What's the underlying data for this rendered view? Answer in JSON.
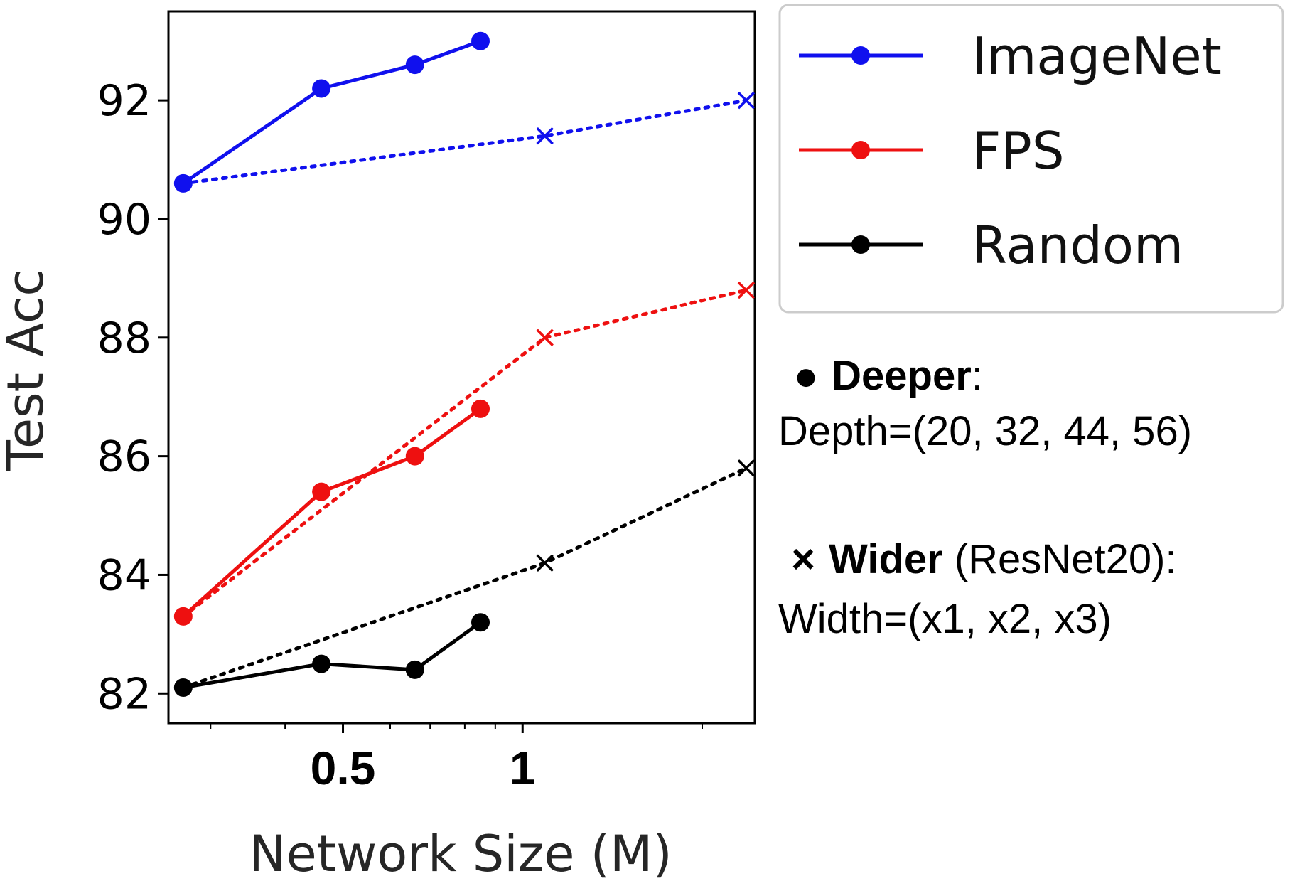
{
  "chart_data": {
    "type": "line",
    "xlabel": "Network Size (M)",
    "ylabel": "Test Acc",
    "x_scale": "log",
    "x_ticks": [
      {
        "value": 0.5,
        "label": "0.5"
      },
      {
        "value": 1,
        "label": "1"
      }
    ],
    "y_ticks": [
      82,
      84,
      86,
      88,
      90,
      92
    ],
    "ylim": [
      81.5,
      93.5
    ],
    "xlim": [
      0.255,
      2.45
    ],
    "grid": false,
    "legend_position": "outside-right-top",
    "legend": [
      {
        "label": "ImageNet",
        "color": "#1010ee"
      },
      {
        "label": "FPS",
        "color": "#ee1010"
      },
      {
        "label": "Random",
        "color": "#000000"
      }
    ],
    "series": [
      {
        "name": "ImageNet",
        "variant": "deeper",
        "line": "solid",
        "marker": "circle",
        "color": "#1010ee",
        "x": [
          0.27,
          0.46,
          0.66,
          0.85
        ],
        "y": [
          90.6,
          92.2,
          92.6,
          93.0
        ]
      },
      {
        "name": "ImageNet",
        "variant": "wider",
        "line": "dotted",
        "marker": "x",
        "color": "#1010ee",
        "x": [
          0.27,
          1.09,
          2.37
        ],
        "y": [
          90.6,
          91.4,
          92.0
        ]
      },
      {
        "name": "FPS",
        "variant": "deeper",
        "line": "solid",
        "marker": "circle",
        "color": "#ee1010",
        "x": [
          0.27,
          0.46,
          0.66,
          0.85
        ],
        "y": [
          83.3,
          85.4,
          86.0,
          86.8
        ]
      },
      {
        "name": "FPS",
        "variant": "wider",
        "line": "dotted",
        "marker": "x",
        "color": "#ee1010",
        "x": [
          0.27,
          1.09,
          2.37
        ],
        "y": [
          83.3,
          88.0,
          88.8
        ]
      },
      {
        "name": "Random",
        "variant": "deeper",
        "line": "solid",
        "marker": "circle",
        "color": "#000000",
        "x": [
          0.27,
          0.46,
          0.66,
          0.85
        ],
        "y": [
          82.1,
          82.5,
          82.4,
          83.2
        ]
      },
      {
        "name": "Random",
        "variant": "wider",
        "line": "dotted",
        "marker": "x",
        "color": "#000000",
        "x": [
          0.27,
          1.09,
          2.37
        ],
        "y": [
          82.1,
          84.2,
          85.8
        ]
      }
    ]
  },
  "notes": {
    "deeper_symbol": "●",
    "deeper_label": "Deeper",
    "deeper_colon": ":",
    "deeper_detail": "Depth=(20, 32, 44, 56)",
    "wider_symbol": "×",
    "wider_label": "Wider",
    "wider_suffix": " (ResNet20):",
    "wider_detail": "Width=(x1, x2, x3)"
  }
}
